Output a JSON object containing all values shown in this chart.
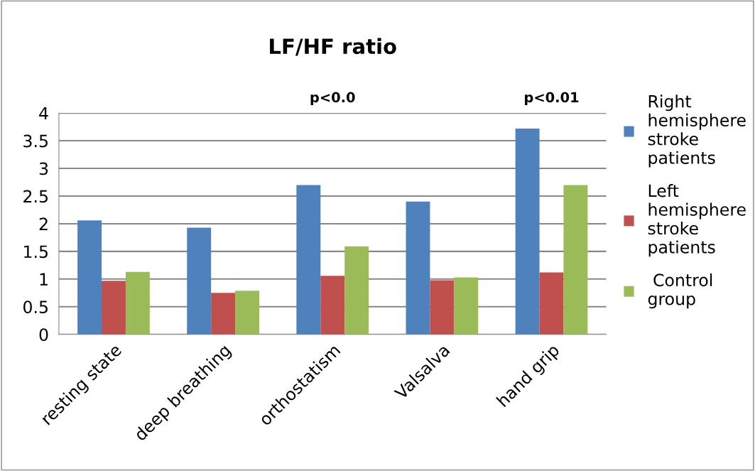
{
  "chart_data": {
    "type": "bar",
    "title": "LF/HF ratio",
    "categories": [
      "resting state",
      "deep breathing",
      "orthostatism",
      "Valsalva",
      "hand grip"
    ],
    "series": [
      {
        "name": "Right\nhemisphere\nstroke\npatients",
        "color": "#4f81bd",
        "values": [
          2.06,
          1.93,
          2.7,
          2.4,
          3.72
        ]
      },
      {
        "name": "Left\nhemisphere\nstroke\npatients",
        "color": "#c0504d",
        "values": [
          0.97,
          0.75,
          1.06,
          0.98,
          1.12
        ]
      },
      {
        "name": " Control\ngroup",
        "color": "#9bbb59",
        "values": [
          1.13,
          0.79,
          1.59,
          1.03,
          2.7
        ]
      }
    ],
    "ylim": [
      0,
      4
    ],
    "yticks": [
      0,
      {
        "value": 0.5,
        "label": "0.5"
      },
      1,
      {
        "value": 1.5,
        "label": "1.5"
      },
      2,
      {
        "value": 2.5,
        "label": "2.5"
      },
      3,
      {
        "value": 3.5,
        "label": "3.5"
      },
      4
    ],
    "annotations": [
      "p<0.0",
      "p<0.01"
    ],
    "grid": "y",
    "legend": "right"
  }
}
